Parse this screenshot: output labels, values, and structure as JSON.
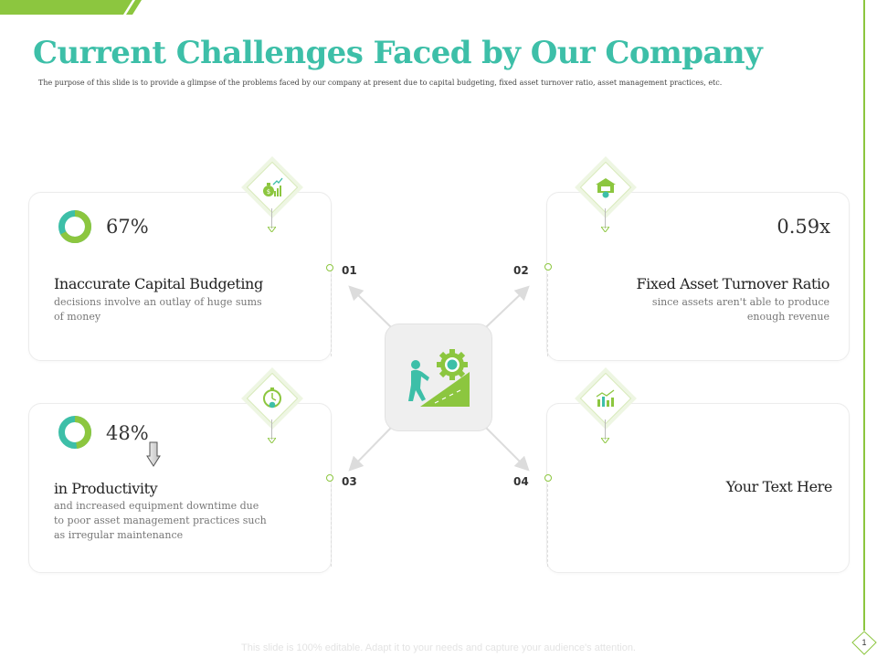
{
  "slide": {
    "title": "Current Challenges Faced by Our Company",
    "subtitle": "The purpose of this slide is to provide a glimpse of the problems faced by our company at present due to capital budgeting, fixed asset turnover ratio, asset management practices, etc.",
    "footer": "This slide is 100% editable. Adapt it to your needs and capture your audience's attention.",
    "page_number": "1"
  },
  "colors": {
    "teal": "#3dbfa8",
    "green": "#8cc63f",
    "light_green": "#eef6e3"
  },
  "cards": [
    {
      "number": "01",
      "value": "67%",
      "value_fraction": 0.67,
      "heading": "Inaccurate Capital Budgeting",
      "desc1": "decisions involve an outlay of huge sums",
      "desc2": "of money",
      "icon": "money-bag-growth-icon"
    },
    {
      "number": "02",
      "value": "0.59x",
      "heading": "Fixed Asset Turnover Ratio",
      "desc1": "since assets aren't able to produce",
      "desc2": "enough revenue",
      "icon": "dollar-house-icon"
    },
    {
      "number": "03",
      "value": "48%",
      "value_fraction": 0.48,
      "heading": "in Productivity",
      "desc1": "and increased equipment downtime due",
      "desc2": "to poor asset management  practices such",
      "desc3": "as irregular  maintenance",
      "icon": "stopwatch-icon"
    },
    {
      "number": "04",
      "heading": "Your Text Here",
      "icon": "growth-chart-icon"
    }
  ],
  "center": {
    "icon": "person-pushing-gear-uphill-icon"
  }
}
